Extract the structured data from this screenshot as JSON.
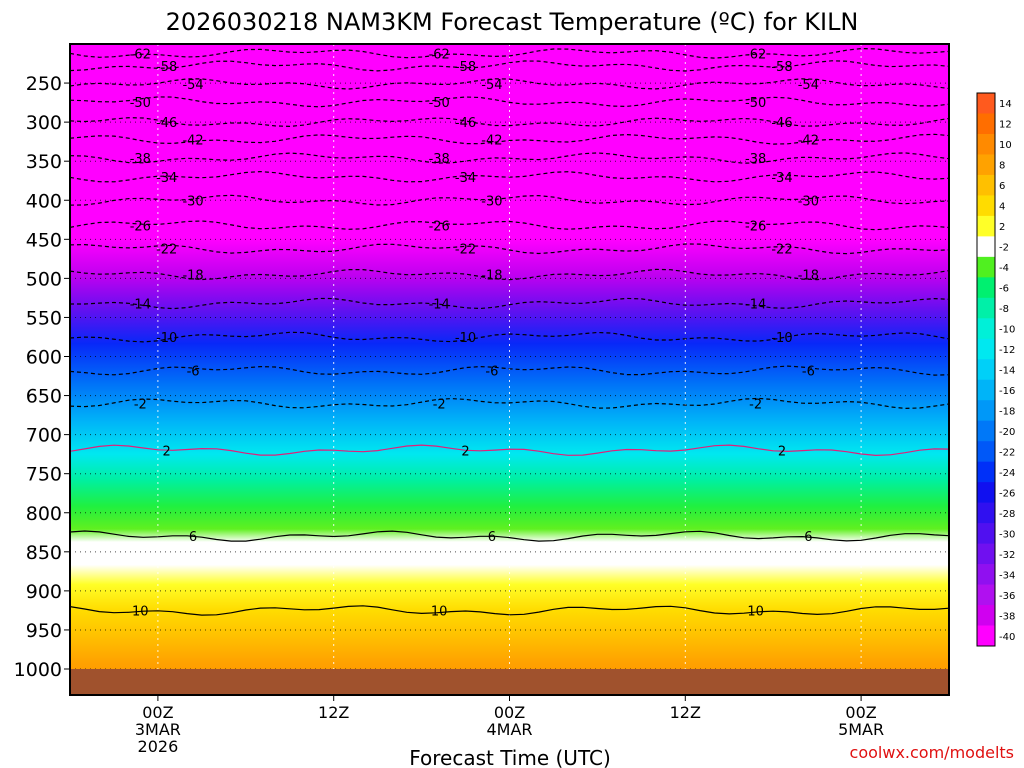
{
  "chart_data": {
    "type": "heatmap",
    "title": "2026030218 NAM3KM Forecast Temperature (ºC) for KILN",
    "xlabel": "Forecast Time (UTC)",
    "ylabel": "",
    "credit": "coolwx.com/modelts",
    "y_axis": {
      "type": "pressure",
      "inverted": true,
      "ticks": [
        250,
        300,
        350,
        400,
        450,
        500,
        550,
        600,
        650,
        700,
        750,
        800,
        850,
        900,
        950,
        1000
      ],
      "range": [
        200,
        1000
      ]
    },
    "x_axis": {
      "range_hours": [
        -6,
        54
      ],
      "ticks": [
        {
          "hour": 0,
          "lines": [
            "00Z",
            "3MAR",
            "2026"
          ]
        },
        {
          "hour": 12,
          "lines": [
            "12Z"
          ]
        },
        {
          "hour": 24,
          "lines": [
            "00Z",
            "4MAR"
          ]
        },
        {
          "hour": 36,
          "lines": [
            "12Z"
          ]
        },
        {
          "hour": 48,
          "lines": [
            "00Z",
            "5MAR"
          ]
        }
      ]
    },
    "grid": true,
    "legend": "right",
    "colorbar": [
      {
        "label": "14",
        "color": "#ff5a1e"
      },
      {
        "label": "12",
        "color": "#ff6e00"
      },
      {
        "label": "10",
        "color": "#ff8a00"
      },
      {
        "label": "8",
        "color": "#ffa200"
      },
      {
        "label": "6",
        "color": "#ffc000"
      },
      {
        "label": "4",
        "color": "#ffdc00"
      },
      {
        "label": "2",
        "color": "#ffff28"
      },
      {
        "label": "-2",
        "color": "#ffffff"
      },
      {
        "label": "-4",
        "color": "#50f020"
      },
      {
        "label": "-6",
        "color": "#00f070"
      },
      {
        "label": "-8",
        "color": "#00f0a8"
      },
      {
        "label": "-10",
        "color": "#00f0d8"
      },
      {
        "label": "-12",
        "color": "#00e8f0"
      },
      {
        "label": "-14",
        "color": "#00d0f8"
      },
      {
        "label": "-16",
        "color": "#00b4f8"
      },
      {
        "label": "-18",
        "color": "#0098f8"
      },
      {
        "label": "-20",
        "color": "#0078f8"
      },
      {
        "label": "-22",
        "color": "#0058f8"
      },
      {
        "label": "-24",
        "color": "#0030f8"
      },
      {
        "label": "-26",
        "color": "#1010f0"
      },
      {
        "label": "-28",
        "color": "#3010f0"
      },
      {
        "label": "-30",
        "color": "#5010f0"
      },
      {
        "label": "-32",
        "color": "#7010f0"
      },
      {
        "label": "-34",
        "color": "#9010f0"
      },
      {
        "label": "-36",
        "color": "#b010f0"
      },
      {
        "label": "-38",
        "color": "#d000f0"
      },
      {
        "label": "-40",
        "color": "#ff00ff"
      }
    ],
    "colors": {
      "ground": "#a0522d",
      "freezing_line": "#e0207a",
      "credit": "#e01010"
    },
    "contours": [
      {
        "level": -62,
        "pressure": 212
      },
      {
        "level": -58,
        "pressure": 228
      },
      {
        "level": -54,
        "pressure": 251
      },
      {
        "level": -50,
        "pressure": 274
      },
      {
        "level": -46,
        "pressure": 300
      },
      {
        "level": -42,
        "pressure": 322
      },
      {
        "level": -38,
        "pressure": 346
      },
      {
        "level": -34,
        "pressure": 370
      },
      {
        "level": -30,
        "pressure": 400
      },
      {
        "level": -26,
        "pressure": 432
      },
      {
        "level": -22,
        "pressure": 462
      },
      {
        "level": -18,
        "pressure": 495
      },
      {
        "level": -14,
        "pressure": 532
      },
      {
        "level": -10,
        "pressure": 575
      },
      {
        "level": -6,
        "pressure": 618
      },
      {
        "level": -2,
        "pressure": 660
      },
      {
        "level": 2,
        "pressure": 720
      },
      {
        "level": 6,
        "pressure": 830
      },
      {
        "level": 10,
        "pressure": 925
      }
    ]
  }
}
